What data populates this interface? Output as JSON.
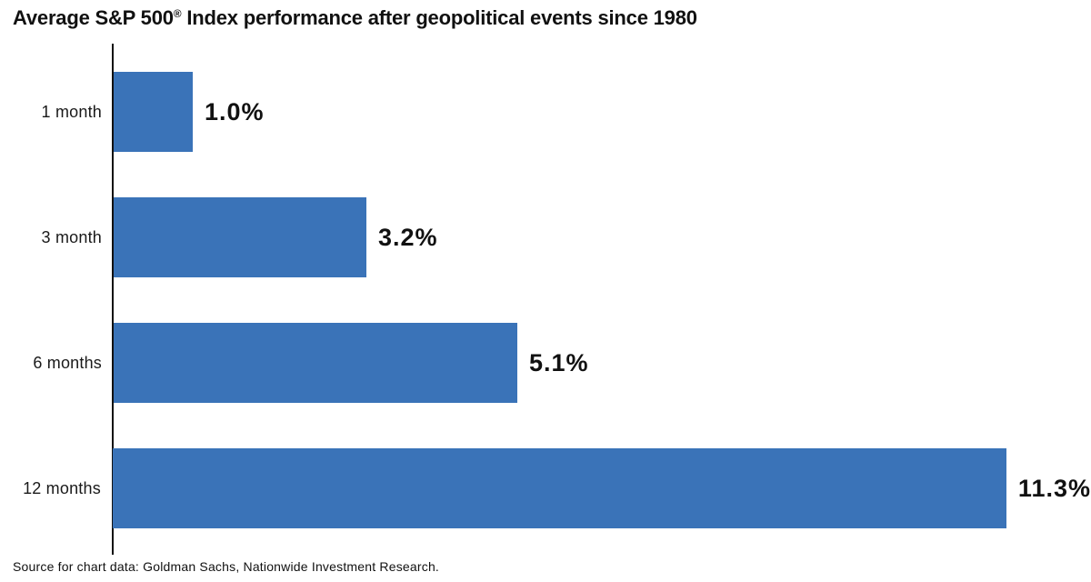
{
  "title": {
    "pre": "Average S&P 500",
    "reg_mark": "®",
    "post": " Index performance after geopolitical events since 1980"
  },
  "source_note": "Source for chart data: Goldman Sachs, Nationwide Investment Research.",
  "colors": {
    "bar": "#3A73B8",
    "axis": "#111111",
    "text": "#1A1A1A"
  },
  "chart_data": {
    "type": "bar",
    "orientation": "horizontal",
    "title": "Average S&P 500® Index performance after geopolitical events since 1980",
    "categories": [
      "1 month",
      "3 month",
      "6 months",
      "12 months"
    ],
    "values": [
      1.0,
      3.2,
      5.1,
      11.3
    ],
    "value_labels": [
      "1.0%",
      "3.2%",
      "5.1%",
      "11.3%"
    ],
    "unit": "%",
    "xlim": [
      0,
      12.4
    ],
    "grid": false,
    "legend": false,
    "ylabel": "",
    "xlabel": "",
    "source": "Source for chart data: Goldman Sachs, Nationwide Investment Research."
  }
}
